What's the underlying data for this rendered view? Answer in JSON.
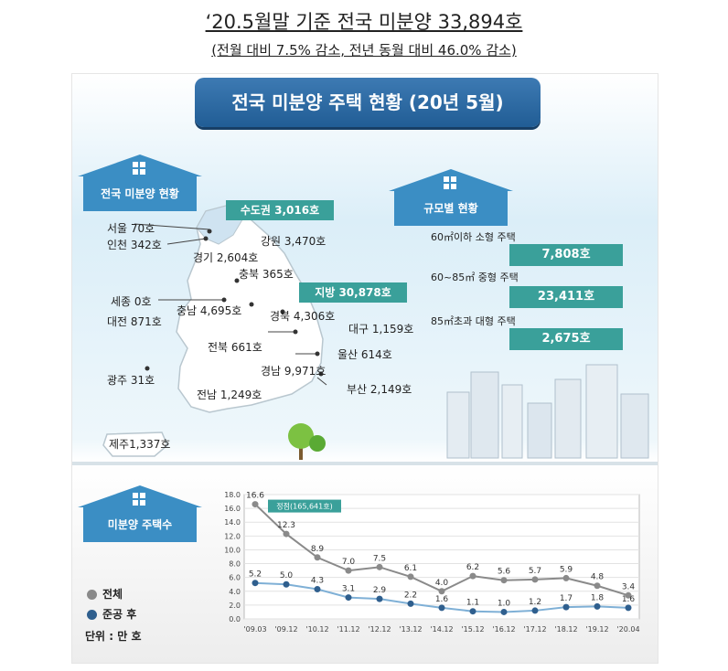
{
  "header": {
    "headline": "‘20.5월말 기준 전국 미분양 33,894호",
    "subline": "(전월 대비 7.5% 감소, 전년 동월 대비 46.0% 감소)"
  },
  "banner": "전국 미분양 주택 현황 (20년 5월)",
  "sections": {
    "regional": "전국 미분양 현황",
    "by_size": "규모별 현황",
    "trend": "미분양 주택수"
  },
  "capital_tag": "수도권 3,016호",
  "local_tag": "지방 30,878호",
  "regions": {
    "seoul": "서울  70호",
    "incheon": "인천 342호",
    "gyeonggi": "경기 2,604호",
    "gangwon": "강원 3,470호",
    "chungbuk": "충북 365호",
    "sejong": "세종 0호",
    "chungnam": "충남 4,695호",
    "daejeon": "대전 871호",
    "gyeongbuk": "경북 4,306호",
    "daegu": "대구 1,159호",
    "jeonbuk": "전북 661호",
    "ulsan": "울산 614호",
    "gyeongnam": "경남 9,971호",
    "gwangju": "광주 31호",
    "busan": "부산 2,149호",
    "jeonnam": "전남 1,249호",
    "jeju": "제주1,337호"
  },
  "size_breakdown": [
    {
      "label": "60㎡이하 소형 주택",
      "value": "7,808호"
    },
    {
      "label": "60~85㎡ 중형 주택",
      "value": "23,411호"
    },
    {
      "label": "85㎡초과 대형 주택",
      "value": "2,675호"
    }
  ],
  "legend": {
    "total": "전체",
    "completed": "준공 후",
    "unit": "단위 : 만 호"
  },
  "colors": {
    "total": "#8a8a8a",
    "completed": "#2f5f8e",
    "completed_line": "#7fb0d6",
    "teal": "#3aa09a",
    "banner": "#2a6aa5"
  },
  "chart_data": {
    "type": "line",
    "x": [
      "'09.03",
      "'09.12",
      "'10.12",
      "'11.12",
      "'12.12",
      "'13.12",
      "'14.12",
      "'15.12",
      "'16.12",
      "'17.12",
      "'18.12",
      "'19.12",
      "'20.04"
    ],
    "series": [
      {
        "name": "전체",
        "values": [
          16.6,
          12.3,
          8.9,
          7.0,
          7.5,
          6.1,
          4.0,
          6.2,
          5.6,
          5.7,
          5.9,
          4.8,
          3.4
        ]
      },
      {
        "name": "준공 후",
        "values": [
          5.2,
          5.0,
          4.3,
          3.1,
          2.9,
          2.2,
          1.6,
          1.1,
          1.0,
          1.2,
          1.7,
          1.8,
          1.6
        ]
      }
    ],
    "annotations": [
      {
        "index": 0,
        "text": "정점(165,641호)"
      }
    ],
    "yticks": [
      0.0,
      2.0,
      4.0,
      6.0,
      8.0,
      10.0,
      12.0,
      14.0,
      16.0,
      18.0
    ],
    "ylim": [
      0,
      18
    ],
    "grid": true,
    "legend_position": "bottom-left"
  }
}
